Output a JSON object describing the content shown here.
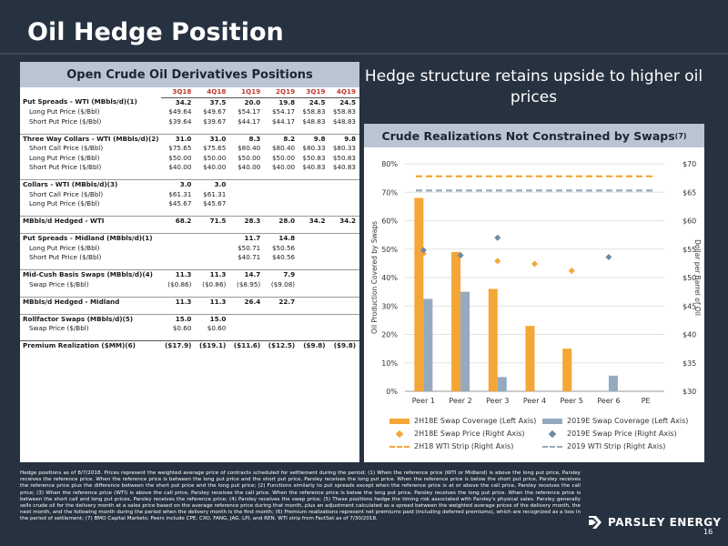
{
  "page": {
    "title": "Oil Hedge Position",
    "page_number": "16",
    "logo_text": "PARSLEY ENERGY"
  },
  "left_table": {
    "header": "Open Crude Oil Derivatives Positions",
    "columns": [
      "3Q18",
      "4Q18",
      "1Q19",
      "2Q19",
      "3Q19",
      "4Q19"
    ],
    "rows": [
      {
        "label": "Put Spreads - WTI (MBbls/d)(1)",
        "style": "bold",
        "values": [
          "34.2",
          "37.5",
          "20.0",
          "19.8",
          "24.5",
          "24.5"
        ]
      },
      {
        "label": "Long Put Price ($/Bbl)",
        "style": "sub",
        "values": [
          "$49.64",
          "$49.67",
          "$54.17",
          "$54.17",
          "$58.83",
          "$58.83"
        ]
      },
      {
        "label": "Short Put Price ($/Bbl)",
        "style": "sub",
        "values": [
          "$39.64",
          "$39.67",
          "$44.17",
          "$44.17",
          "$48.83",
          "$48.83"
        ]
      },
      {
        "style": "gap"
      },
      {
        "label": "Three Way Collars - WTI (MBbls/d)(2)",
        "style": "bold rule",
        "values": [
          "31.0",
          "31.0",
          "8.3",
          "8.2",
          "9.8",
          "9.8"
        ]
      },
      {
        "label": "Short Call Price ($/Bbl)",
        "style": "sub",
        "values": [
          "$75.65",
          "$75.65",
          "$80.40",
          "$80.40",
          "$80.33",
          "$80.33"
        ]
      },
      {
        "label": "Long Put Price ($/Bbl)",
        "style": "sub",
        "values": [
          "$50.00",
          "$50.00",
          "$50.00",
          "$50.00",
          "$50.83",
          "$50.83"
        ]
      },
      {
        "label": "Short Put Price ($/Bbl)",
        "style": "sub",
        "values": [
          "$40.00",
          "$40.00",
          "$40.00",
          "$40.00",
          "$40.83",
          "$40.83"
        ]
      },
      {
        "style": "gap"
      },
      {
        "label": "Collars - WTI (MBbls/d)(3)",
        "style": "bold rule",
        "values": [
          "3.0",
          "3.0",
          "",
          "",
          "",
          ""
        ]
      },
      {
        "label": "Short Call Price ($/Bbl)",
        "style": "sub",
        "values": [
          "$61.31",
          "$61.31",
          "",
          "",
          "",
          ""
        ]
      },
      {
        "label": "Long Put Price ($/Bbl)",
        "style": "sub",
        "values": [
          "$45.67",
          "$45.67",
          "",
          "",
          "",
          ""
        ]
      },
      {
        "style": "gap"
      },
      {
        "label": "MBbls/d Hedged - WTI",
        "style": "bold rule",
        "values": [
          "68.2",
          "71.5",
          "28.3",
          "28.0",
          "34.2",
          "34.2"
        ]
      },
      {
        "style": "gap"
      },
      {
        "label": "Put Spreads - Midland (MBbls/d)(1)",
        "style": "bold rule",
        "values": [
          "",
          "",
          "11.7",
          "14.8",
          "",
          ""
        ]
      },
      {
        "label": "Long Put Price ($/Bbl)",
        "style": "sub",
        "values": [
          "",
          "",
          "$50.71",
          "$50.56",
          "",
          ""
        ]
      },
      {
        "label": "Short Put Price ($/Bbl)",
        "style": "sub",
        "values": [
          "",
          "",
          "$40.71",
          "$40.56",
          "",
          ""
        ]
      },
      {
        "style": "gap"
      },
      {
        "label": "Mid-Cush Basis Swaps (MBbls/d)(4)",
        "style": "bold rule",
        "values": [
          "11.3",
          "11.3",
          "14.7",
          "7.9",
          "",
          ""
        ]
      },
      {
        "label": "Swap Price ($/Bbl)",
        "style": "sub",
        "values": [
          "($0.86)",
          "($0.86)",
          "($8.95)",
          "($9.08)",
          "",
          ""
        ]
      },
      {
        "style": "gap"
      },
      {
        "label": "MBbls/d Hedged - Midland",
        "style": "bold rule",
        "values": [
          "11.3",
          "11.3",
          "26.4",
          "22.7",
          "",
          ""
        ]
      },
      {
        "style": "gap"
      },
      {
        "label": "Rollfactor Swaps (MBbls/d)(5)",
        "style": "bold rule",
        "values": [
          "15.0",
          "15.0",
          "",
          "",
          "",
          ""
        ]
      },
      {
        "label": "Swap Price ($/Bbl)",
        "style": "sub",
        "values": [
          "$0.60",
          "$0.60",
          "",
          "",
          "",
          ""
        ]
      },
      {
        "style": "gap"
      },
      {
        "label": "Premium Realization ($MM)(6)",
        "style": "bold thick",
        "values": [
          "($17.9)",
          "($19.1)",
          "($11.6)",
          "($12.5)",
          "($9.8)",
          "($9.8)"
        ]
      }
    ]
  },
  "right_title": "Hedge structure retains upside to higher oil prices",
  "chart_header": "Crude Realizations Not Constrained by Swaps",
  "chart_header_sup": "(7)",
  "chart_data": {
    "type": "bar",
    "categories": [
      "Peer 1",
      "Peer 2",
      "Peer 3",
      "Peer 4",
      "Peer 5",
      "Peer 6",
      "PE"
    ],
    "ylabel": "Oil Production Covered by Swaps",
    "ylabel_right": "Dollar per Barrel of Oil",
    "ylim": [
      0,
      80
    ],
    "yticks": [
      "0%",
      "10%",
      "20%",
      "30%",
      "40%",
      "50%",
      "60%",
      "70%",
      "80%"
    ],
    "ylim_right": [
      30,
      70
    ],
    "yticks_right": [
      "$30",
      "$35",
      "$40",
      "$45",
      "$50",
      "$55",
      "$60",
      "$65",
      "$70"
    ],
    "series": [
      {
        "name": "2H18E Swap Coverage (Left Axis)",
        "kind": "bar",
        "color": "#f4a636",
        "values": [
          68,
          49,
          36,
          23,
          15,
          0,
          0
        ]
      },
      {
        "name": "2019E Swap Coverage (Left Axis)",
        "kind": "bar",
        "color": "#94aabf",
        "values": [
          32.5,
          35,
          5,
          0,
          0,
          5.5,
          0
        ]
      },
      {
        "name": "2H18E Swap Price (Right Axis)",
        "kind": "marker",
        "color": "#f4a636",
        "points": [
          {
            "x": 0,
            "y": 54.2
          },
          {
            "x": 1,
            "y": 53.9
          },
          {
            "x": 2,
            "y": 52.9
          },
          {
            "x": 3,
            "y": 52.4
          },
          {
            "x": 4,
            "y": 51.2
          }
        ]
      },
      {
        "name": "2019E Swap Price (Right Axis)",
        "kind": "marker",
        "color": "#6f8aa3",
        "points": [
          {
            "x": 0,
            "y": 54.8
          },
          {
            "x": 1,
            "y": 53.9
          },
          {
            "x": 2,
            "y": 57.0
          },
          {
            "x": 5,
            "y": 53.6
          }
        ]
      },
      {
        "name": "2H18 WTI Strip (Right Axis)",
        "kind": "dash",
        "color": "#f4a636",
        "value": 67.8
      },
      {
        "name": "2019 WTI Strip (Right Axis)",
        "kind": "dash",
        "color": "#94aabf",
        "value": 65.3
      }
    ]
  },
  "legend": [
    {
      "label": "2H18E Swap Coverage (Left Axis)",
      "shape": "bar",
      "color": "#f4a636"
    },
    {
      "label": "2019E Swap Coverage (Left Axis)",
      "shape": "bar",
      "color": "#94aabf"
    },
    {
      "label": "2H18E Swap Price (Right Axis)",
      "shape": "diamond",
      "color": "#f4a636"
    },
    {
      "label": "2019E Swap Price (Right Axis)",
      "shape": "diamond",
      "color": "#6f8aa3"
    },
    {
      "label": "2H18 WTI Strip (Right Axis)",
      "shape": "dash",
      "color": "#f4a636"
    },
    {
      "label": "2019 WTI Strip (Right Axis)",
      "shape": "dash",
      "color": "#94aabf"
    }
  ],
  "footnote": "Hedge positions as of 8/7/2018. Prices represent the weighted average price of contracts scheduled for settlement during the period; (1) When the reference price (WTI or Midland) is above the long put price, Parsley receives the reference price. When the reference price is between the long put price and the short put price, Parsley receives the long put price. When the reference price is below the short put price, Parsley receives the reference price plus the difference between the short put price and the long put price; (2) Functions similarly to put spreads except when the reference price is at or above the call price, Parsley receives the call price; (3) When the reference price (WTI) is above the call price, Parsley receives the call price. When the reference price is below the long put price, Parsley receives the long put price. When the reference price is between the short call and long put prices, Parsley receives the reference price; (4) Parsley receives the swap price; (5) These positions hedge the timing risk associated with Parsley's physical sales. Parsley generally sells crude oil for the delivery month at a sales price based on the average reference price during that month, plus an adjustment calculated as a spread between the weighted average prices of the delivery month, the next month, and the following month during the period when the delivery month is the first month; (6) Premium realizations represent net premiums paid (including deferred premiums), which are recognized as a loss in the period of settlement; (7) BMO Capital Markets; Peers include CPE, CXO, FANG, JAG, LPI, and REN. WTI strip from FactSet as of 7/30/2018.",
  "colors": {
    "background": "#273240",
    "panel_header": "#b9c5d1",
    "accent_orange": "#f4a636",
    "accent_blue": "#94aabf",
    "table_header_red": "#c0392b"
  }
}
